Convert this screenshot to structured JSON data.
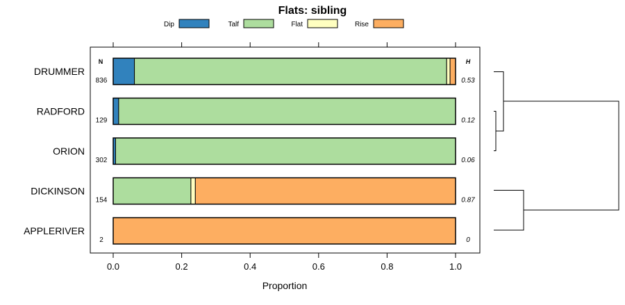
{
  "chart_data": {
    "type": "bar",
    "orientation": "horizontal",
    "stacked": true,
    "title": "Flats: sibling",
    "xlabel": "Proportion",
    "ylabel": "",
    "xlim": [
      0,
      1
    ],
    "x_ticks": [
      "0.0",
      "0.2",
      "0.4",
      "0.6",
      "0.8",
      "1.0"
    ],
    "x_tick_values": [
      0,
      0.2,
      0.4,
      0.6,
      0.8,
      1.0
    ],
    "legend_position": "top",
    "n_header": "N",
    "h_header": "H",
    "categories": [
      "DRUMMER",
      "RADFORD",
      "ORION",
      "DICKINSON",
      "APPLERIVER"
    ],
    "n_values": [
      "836",
      "129",
      "302",
      "154",
      "2"
    ],
    "h_values": [
      "0.53",
      "0.12",
      "0.06",
      "0.87",
      "0"
    ],
    "series": [
      {
        "name": "Dip",
        "color": "#3182bd",
        "values": [
          0.062,
          0.016,
          0.007,
          0.0,
          0.0
        ]
      },
      {
        "name": "Talf",
        "color": "#addd9e",
        "values": [
          0.912,
          0.984,
          0.993,
          0.227,
          0.0
        ]
      },
      {
        "name": "Flat",
        "color": "#ffffc0",
        "values": [
          0.01,
          0.0,
          0.0,
          0.013,
          0.0
        ]
      },
      {
        "name": "Rise",
        "color": "#fdae61",
        "values": [
          0.016,
          0.0,
          0.0,
          0.76,
          1.0
        ]
      }
    ],
    "dendrogram": "hierarchical clustering of categories (right side)"
  }
}
